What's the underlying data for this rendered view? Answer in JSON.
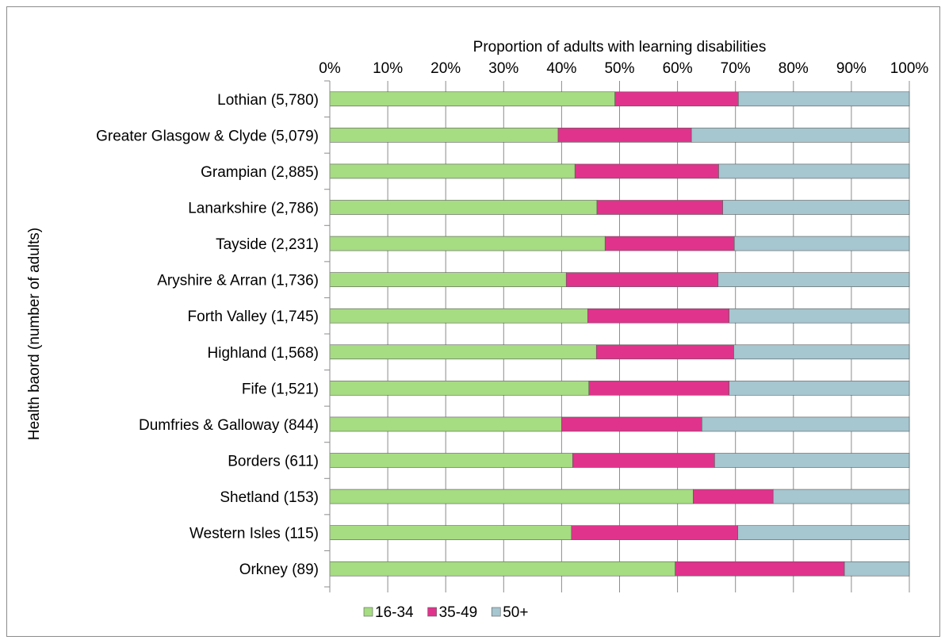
{
  "chart_data": {
    "type": "bar",
    "orientation": "horizontal",
    "stacked": "percent",
    "title": "",
    "xlabel": "Proportion of adults with learning disabilities",
    "ylabel": "Health baord (number of adults)",
    "xlim": [
      0,
      100
    ],
    "x_ticks": [
      "0%",
      "10%",
      "20%",
      "30%",
      "40%",
      "50%",
      "60%",
      "70%",
      "80%",
      "90%",
      "100%"
    ],
    "x_axis_position": "top",
    "grid": true,
    "legend_position": "bottom",
    "categories": [
      "Lothian (5,780)",
      "Greater Glasgow & Clyde (5,079)",
      "Grampian (2,885)",
      "Lanarkshire (2,786)",
      "Tayside (2,231)",
      "Aryshire & Arran (1,736)",
      "Forth Valley (1,745)",
      "Highland (1,568)",
      "Fife (1,521)",
      "Dumfries & Galloway (844)",
      "Borders (611)",
      "Shetland (153)",
      "Western Isles (115)",
      "Orkney (89)"
    ],
    "series": [
      {
        "name": "16-34",
        "color": "#a6dc82",
        "values": [
          49.2,
          39.4,
          42.3,
          46.1,
          47.5,
          40.8,
          44.5,
          46.0,
          44.7,
          40.0,
          41.9,
          62.7,
          41.7,
          59.6
        ]
      },
      {
        "name": "35-49",
        "color": "#e0338c",
        "values": [
          21.3,
          23.0,
          24.8,
          21.7,
          22.3,
          26.2,
          24.4,
          23.7,
          24.2,
          24.2,
          24.5,
          13.8,
          28.7,
          29.2
        ]
      },
      {
        "name": "50+",
        "color": "#a6c6d0",
        "values": [
          29.5,
          37.6,
          32.9,
          32.2,
          30.2,
          33.0,
          31.1,
          30.3,
          31.1,
          35.8,
          33.6,
          23.5,
          29.6,
          11.2
        ]
      }
    ]
  }
}
